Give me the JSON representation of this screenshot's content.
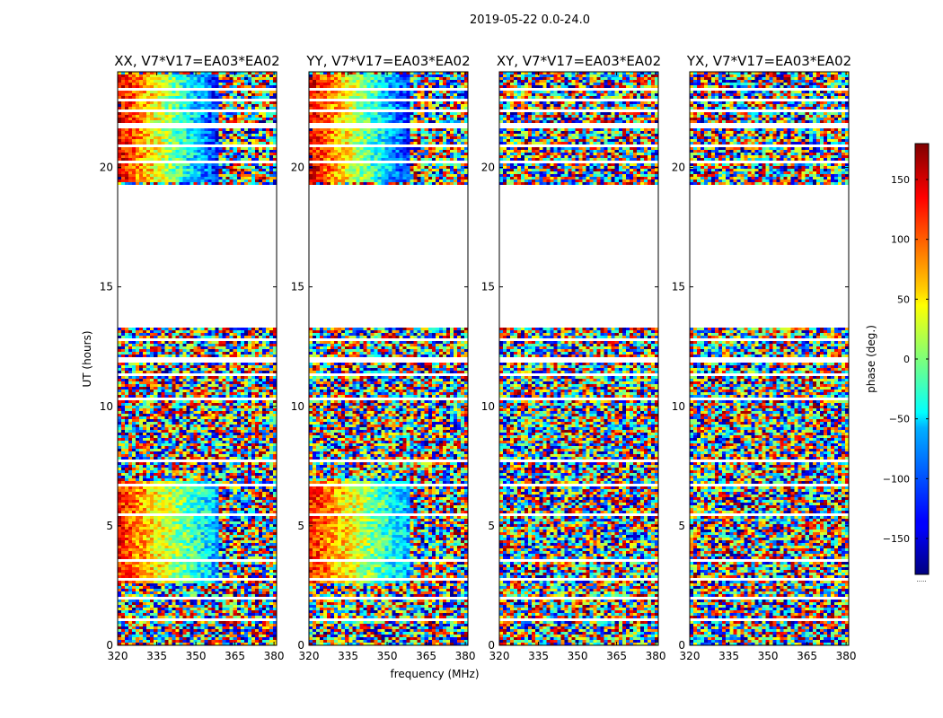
{
  "figure": {
    "suptitle": "2019-05-22 0.0-24.0",
    "xlabel": "frequency (MHz)",
    "ylabel": "UT (hours)"
  },
  "chart_data": {
    "type": "heatmap",
    "title": "2019-05-22 0.0-24.0",
    "xlabel": "frequency (MHz)",
    "ylabel": "UT (hours)",
    "xlim": [
      320,
      381
    ],
    "ylim": [
      0,
      24
    ],
    "xticks": [
      "320",
      "335",
      "350",
      "365",
      "380"
    ],
    "xtick_values": [
      320,
      335,
      350,
      365,
      380
    ],
    "yticks": [
      "0",
      "5",
      "10",
      "15",
      "20"
    ],
    "ytick_values": [
      0,
      5,
      10,
      15,
      20
    ],
    "panels": [
      {
        "title": "XX, V7*V17=EA03*EA02",
        "polarization": "XX",
        "coherent_phase": true
      },
      {
        "title": "YY, V7*V17=EA03*EA02",
        "polarization": "YY",
        "coherent_phase": true
      },
      {
        "title": "XY, V7*V17=EA03*EA02",
        "polarization": "XY",
        "coherent_phase": false
      },
      {
        "title": "YX, V7*V17=EA03*EA02",
        "polarization": "YX",
        "coherent_phase": false
      }
    ],
    "data_gaps_ut_hours": [
      [
        13.3,
        19.3
      ]
    ],
    "colorbar": {
      "label": "phase (deg.)",
      "range": [
        -180,
        180
      ],
      "ticks": [
        "150",
        "100",
        "50",
        "0",
        "−50",
        "−100",
        "−150"
      ],
      "tick_values": [
        150,
        100,
        50,
        0,
        -50,
        -100,
        -150
      ],
      "colormap": "jet",
      "extra_label": "....."
    }
  }
}
